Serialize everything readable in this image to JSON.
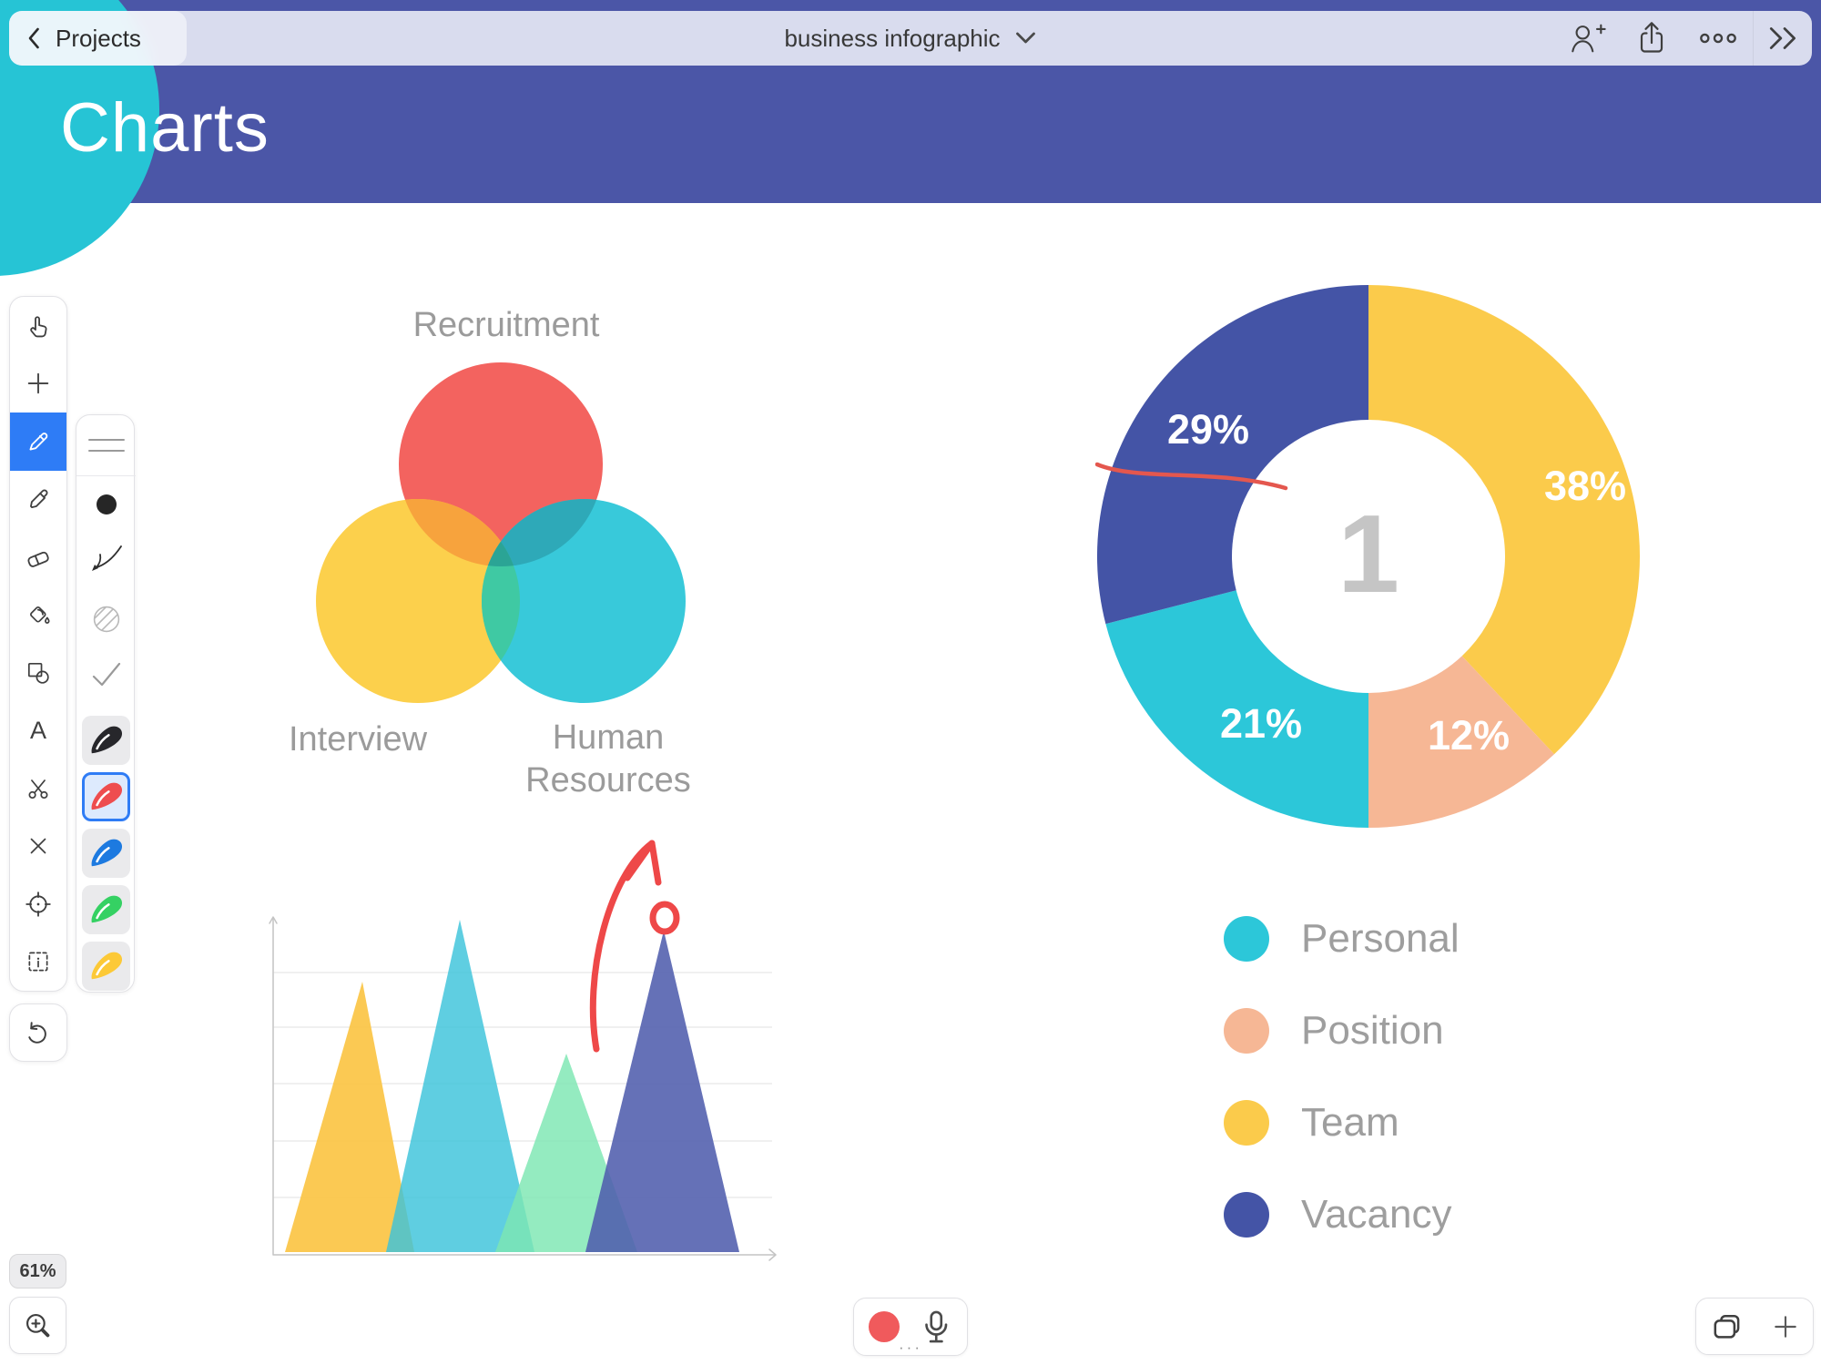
{
  "app": {
    "zoom_label": "61%"
  },
  "topbar": {
    "back_label": "Projects",
    "title": "business infographic",
    "icons": [
      "back-chevron",
      "title-dropdown",
      "add-person",
      "share",
      "more-options",
      "collapse-panel"
    ]
  },
  "header": {
    "title": "Charts"
  },
  "toolbar": {
    "tools": [
      "pan-hand",
      "add",
      "pencil",
      "highlighter",
      "eraser",
      "fill-bucket",
      "shapes",
      "text",
      "scissors",
      "delete",
      "precision-target",
      "select-area",
      "undo"
    ],
    "selected_tool": "pencil",
    "selected_tool_color": "#2e7cf6",
    "text_tool_label": "A",
    "stroke_colors": [
      "black",
      "red",
      "blue",
      "green",
      "yellow"
    ],
    "selected_color": "red"
  },
  "venn_labels": {
    "top": "Recruitment",
    "left": "Interview",
    "right_line1": "Human",
    "right_line2": "Resources"
  },
  "recorder": {
    "more_label": "···"
  },
  "chart_data": [
    {
      "type": "venn",
      "sets": [
        {
          "label": "Recruitment",
          "color": "#f3635f"
        },
        {
          "label": "Interview",
          "color": "#fcd04c"
        },
        {
          "label": "Human Resources",
          "color": "#38c9da"
        }
      ],
      "overlap_colors": {
        "red_yellow": "#f7a33d",
        "red_teal": "#2ea9b8",
        "yellow_teal": "#3fc9a3",
        "triple": "#2ba495"
      }
    },
    {
      "type": "donut",
      "center_label": "1",
      "start_angle_deg": 0,
      "direction": "clockwise",
      "segments": [
        {
          "name": "Team",
          "label": "38%",
          "value": 38,
          "color": "#fbcb4b"
        },
        {
          "name": "Position",
          "label": "12%",
          "value": 12,
          "color": "#f6b795"
        },
        {
          "name": "Personal",
          "label": "21%",
          "value": 21,
          "color": "#2cc7d9"
        },
        {
          "name": "Vacancy",
          "label": "29%",
          "value": 29,
          "color": "#4454a6"
        }
      ],
      "legend": [
        {
          "label": "Personal",
          "color": "#2cc7d9"
        },
        {
          "label": "Position",
          "color": "#f6b795"
        },
        {
          "label": "Team",
          "color": "#fbcb4b"
        },
        {
          "label": "Vacancy",
          "color": "#4454a6"
        }
      ],
      "legend_position": "below",
      "annotation": "hand-drawn red line across the 29% segment"
    },
    {
      "type": "area-triangles",
      "gridlines": 5,
      "series": [
        {
          "name": "triangle-1",
          "color": "#fbc23b",
          "relative_peak": 0.79
        },
        {
          "name": "triangle-2",
          "color": "#3cc3da",
          "relative_peak": 0.97
        },
        {
          "name": "triangle-3",
          "color": "#7ce6b2",
          "relative_peak": 0.58
        },
        {
          "name": "triangle-4",
          "color": "#505dad",
          "relative_peak": 0.94
        }
      ],
      "annotation": "hand-drawn red arrow rising toward the fourth (indigo) peak, with a red circle on the peak"
    }
  ]
}
